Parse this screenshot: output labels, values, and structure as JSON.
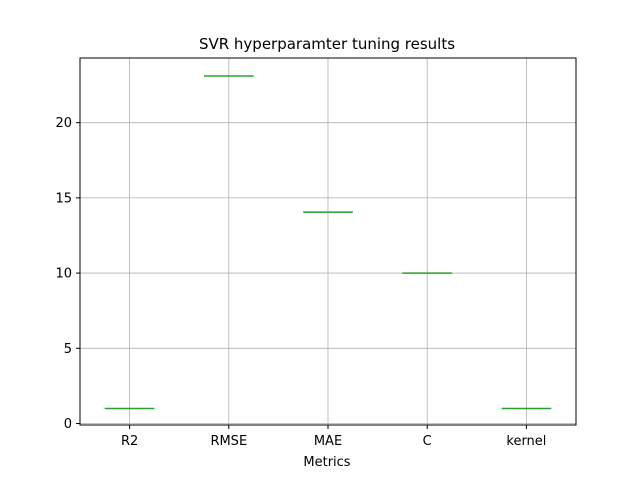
{
  "chart_data": {
    "type": "box",
    "title": "SVR hyperparamter tuning results",
    "xlabel": "Metrics",
    "ylabel": "",
    "categories": [
      "R2",
      "RMSE",
      "MAE",
      "C",
      "kernel"
    ],
    "values": [
      1.0,
      23.1,
      14.05,
      10.0,
      1.0
    ],
    "ylim": [
      -0.1,
      24.3
    ],
    "yticks": [
      0,
      5,
      10,
      15,
      20
    ],
    "grid": true,
    "colors": {
      "median": "#2ca02c",
      "box": "#1f77b4",
      "grid": "#b0b0b0"
    }
  }
}
